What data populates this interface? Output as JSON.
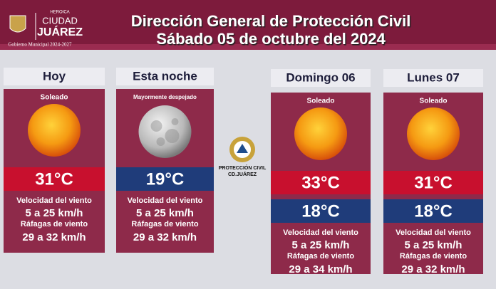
{
  "header": {
    "logo_top": "HEROICA",
    "logo_city": "CIUDAD",
    "logo_name": "JUÁREZ",
    "logo_gov": "Gobierno Municipal 2024-2027",
    "title_line1": "Dirección General de Protección Civil",
    "title_line2": "Sábado 05 de octubre del 2024"
  },
  "center_logo": {
    "line1": "PROTECCIÓN CIVIL",
    "line2": "CD.JUÁREZ"
  },
  "cards": [
    {
      "day": "Hoy",
      "condition": "Soleado",
      "temps": [
        "31°C"
      ],
      "wind_label": "Velocidad del viento",
      "wind": "5 a 25 km/h",
      "gust_label": "Ráfagas de viento",
      "gust": "29 a 32 km/h"
    },
    {
      "day": "Esta noche",
      "condition": "Mayormente despejado",
      "temps": [
        "19°C"
      ],
      "wind_label": "Velocidad del viento",
      "wind": "5 a 25 km/h",
      "gust_label": "Ráfagas de viento",
      "gust": "29 a 32 km/h"
    },
    {
      "day": "Domingo 06",
      "condition": "Soleado",
      "temps": [
        "33°C",
        "18°C"
      ],
      "wind_label": "Velocidad del viento",
      "wind": "5 a 25 km/h",
      "gust_label": "Ráfagas de viento",
      "gust": "29 a 34 km/h"
    },
    {
      "day": "Lunes 07",
      "condition": "Soleado",
      "temps": [
        "31°C",
        "18°C"
      ],
      "wind_label": "Velocidad del viento",
      "wind": "5 a 25 km/h",
      "gust_label": "Ráfagas de viento",
      "gust": "29 a 32 km/h"
    }
  ]
}
